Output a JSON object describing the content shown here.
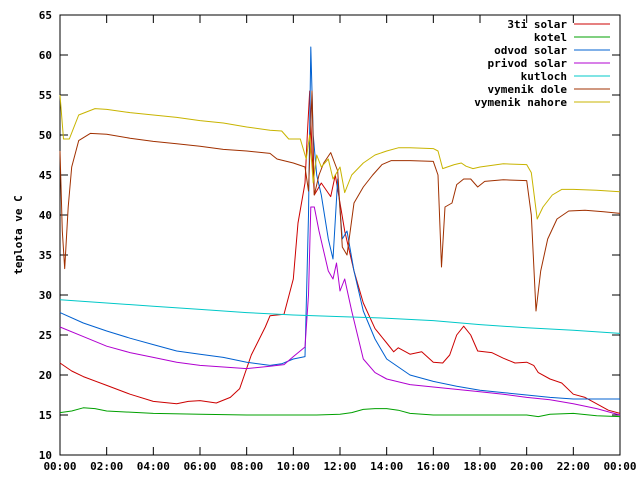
{
  "chart_data": {
    "type": "line",
    "title": "",
    "xlabel": "",
    "ylabel": "teplota ve C",
    "xlim": [
      0,
      24
    ],
    "ylim": [
      10,
      65
    ],
    "grid": false,
    "legend_position": "top-right",
    "x_ticks": [
      {
        "value": 0,
        "label": "00:00"
      },
      {
        "value": 2,
        "label": "02:00"
      },
      {
        "value": 4,
        "label": "04:00"
      },
      {
        "value": 6,
        "label": "06:00"
      },
      {
        "value": 8,
        "label": "08:00"
      },
      {
        "value": 10,
        "label": "10:00"
      },
      {
        "value": 12,
        "label": "12:00"
      },
      {
        "value": 14,
        "label": "14:00"
      },
      {
        "value": 16,
        "label": "16:00"
      },
      {
        "value": 18,
        "label": "18:00"
      },
      {
        "value": 20,
        "label": "20:00"
      },
      {
        "value": 22,
        "label": "22:00"
      },
      {
        "value": 24,
        "label": "00:00"
      }
    ],
    "y_ticks": [
      {
        "value": 10,
        "label": "10"
      },
      {
        "value": 15,
        "label": "15"
      },
      {
        "value": 20,
        "label": "20"
      },
      {
        "value": 25,
        "label": "25"
      },
      {
        "value": 30,
        "label": "30"
      },
      {
        "value": 35,
        "label": "35"
      },
      {
        "value": 40,
        "label": "40"
      },
      {
        "value": 45,
        "label": "45"
      },
      {
        "value": 50,
        "label": "50"
      },
      {
        "value": 55,
        "label": "55"
      },
      {
        "value": 60,
        "label": "60"
      },
      {
        "value": 65,
        "label": "65"
      }
    ],
    "series": [
      {
        "name": "3ti solar",
        "color": "#cc0000",
        "points": [
          [
            0,
            21.5
          ],
          [
            0.5,
            20.5
          ],
          [
            1,
            19.8
          ],
          [
            2,
            18.7
          ],
          [
            3,
            17.6
          ],
          [
            4,
            16.7
          ],
          [
            5,
            16.4
          ],
          [
            5.5,
            16.7
          ],
          [
            6,
            16.8
          ],
          [
            6.7,
            16.5
          ],
          [
            7.3,
            17.2
          ],
          [
            7.7,
            18.3
          ],
          [
            8.2,
            22.5
          ],
          [
            8.8,
            26
          ],
          [
            9,
            27.4
          ],
          [
            9.6,
            27.6
          ],
          [
            10,
            32
          ],
          [
            10.2,
            39
          ],
          [
            10.5,
            44
          ],
          [
            10.6,
            50
          ],
          [
            10.7,
            55.5
          ],
          [
            10.8,
            48
          ],
          [
            10.9,
            42.5
          ],
          [
            11.2,
            44
          ],
          [
            11.6,
            42.3
          ],
          [
            11.8,
            45
          ],
          [
            12.2,
            38
          ],
          [
            12.6,
            33
          ],
          [
            13,
            29
          ],
          [
            13.5,
            25.8
          ],
          [
            14,
            24
          ],
          [
            14.3,
            22.9
          ],
          [
            14.5,
            23.4
          ],
          [
            15,
            22.6
          ],
          [
            15.5,
            22.9
          ],
          [
            16,
            21.6
          ],
          [
            16.4,
            21.5
          ],
          [
            16.7,
            22.5
          ],
          [
            17,
            25
          ],
          [
            17.3,
            26.1
          ],
          [
            17.6,
            25
          ],
          [
            17.9,
            23
          ],
          [
            18.5,
            22.8
          ],
          [
            19,
            22.1
          ],
          [
            19.5,
            21.5
          ],
          [
            20,
            21.6
          ],
          [
            20.3,
            21.2
          ],
          [
            20.5,
            20.3
          ],
          [
            21,
            19.5
          ],
          [
            21.5,
            19
          ],
          [
            22,
            17.6
          ],
          [
            22.5,
            17.2
          ],
          [
            23,
            16.4
          ],
          [
            23.5,
            15.6
          ],
          [
            24,
            15.2
          ]
        ]
      },
      {
        "name": "kotel",
        "color": "#00a000",
        "points": [
          [
            0,
            15.3
          ],
          [
            0.5,
            15.5
          ],
          [
            1,
            15.9
          ],
          [
            1.5,
            15.8
          ],
          [
            2,
            15.5
          ],
          [
            4,
            15.2
          ],
          [
            6,
            15.1
          ],
          [
            8,
            15
          ],
          [
            10,
            15
          ],
          [
            11,
            15
          ],
          [
            12,
            15.1
          ],
          [
            12.5,
            15.3
          ],
          [
            13,
            15.7
          ],
          [
            13.5,
            15.8
          ],
          [
            14,
            15.8
          ],
          [
            14.5,
            15.6
          ],
          [
            15,
            15.2
          ],
          [
            16,
            15
          ],
          [
            18,
            15
          ],
          [
            20,
            15
          ],
          [
            20.5,
            14.8
          ],
          [
            21,
            15.1
          ],
          [
            22,
            15.2
          ],
          [
            23,
            14.9
          ],
          [
            24,
            14.8
          ]
        ]
      },
      {
        "name": "odvod solar",
        "color": "#0060d0",
        "points": [
          [
            0,
            27.8
          ],
          [
            1,
            26.5
          ],
          [
            2,
            25.5
          ],
          [
            3,
            24.6
          ],
          [
            4,
            23.8
          ],
          [
            5,
            23
          ],
          [
            6,
            22.6
          ],
          [
            7,
            22.2
          ],
          [
            8,
            21.6
          ],
          [
            9,
            21.2
          ],
          [
            9.5,
            21.4
          ],
          [
            10,
            22
          ],
          [
            10.5,
            22.3
          ],
          [
            10.65,
            40
          ],
          [
            10.75,
            61
          ],
          [
            10.85,
            50
          ],
          [
            11,
            45
          ],
          [
            11.2,
            42.5
          ],
          [
            11.5,
            37
          ],
          [
            11.7,
            34.5
          ],
          [
            11.9,
            44.5
          ],
          [
            12.1,
            37
          ],
          [
            12.3,
            38
          ],
          [
            12.6,
            33
          ],
          [
            13,
            28
          ],
          [
            13.5,
            24.5
          ],
          [
            14,
            22
          ],
          [
            15,
            20
          ],
          [
            16,
            19.2
          ],
          [
            17,
            18.6
          ],
          [
            18,
            18.1
          ],
          [
            19,
            17.8
          ],
          [
            20,
            17.5
          ],
          [
            21,
            17.2
          ],
          [
            22,
            17
          ],
          [
            23,
            17
          ],
          [
            24,
            17
          ]
        ]
      },
      {
        "name": "privod solar",
        "color": "#b000d0",
        "points": [
          [
            0,
            26
          ],
          [
            1,
            24.8
          ],
          [
            2,
            23.6
          ],
          [
            3,
            22.8
          ],
          [
            4,
            22.2
          ],
          [
            5,
            21.6
          ],
          [
            6,
            21.2
          ],
          [
            7,
            21
          ],
          [
            8,
            20.8
          ],
          [
            9,
            21.1
          ],
          [
            9.6,
            21.3
          ],
          [
            10,
            22.3
          ],
          [
            10.5,
            23.5
          ],
          [
            10.65,
            30
          ],
          [
            10.75,
            41
          ],
          [
            10.9,
            41
          ],
          [
            11.1,
            38
          ],
          [
            11.5,
            33
          ],
          [
            11.7,
            32
          ],
          [
            11.85,
            34
          ],
          [
            12,
            30.5
          ],
          [
            12.2,
            32
          ],
          [
            12.5,
            28
          ],
          [
            13,
            22
          ],
          [
            13.5,
            20.3
          ],
          [
            14,
            19.5
          ],
          [
            15,
            18.8
          ],
          [
            16,
            18.5
          ],
          [
            17,
            18.2
          ],
          [
            18,
            17.9
          ],
          [
            19,
            17.6
          ],
          [
            20,
            17.2
          ],
          [
            21,
            16.9
          ],
          [
            22,
            16.4
          ],
          [
            23,
            15.8
          ],
          [
            24,
            15
          ]
        ]
      },
      {
        "name": "kutloch",
        "color": "#00c8c8",
        "points": [
          [
            0,
            29.4
          ],
          [
            2,
            29
          ],
          [
            4,
            28.6
          ],
          [
            6,
            28.2
          ],
          [
            8,
            27.8
          ],
          [
            10,
            27.5
          ],
          [
            12,
            27.3
          ],
          [
            14,
            27.1
          ],
          [
            16,
            26.8
          ],
          [
            18,
            26.3
          ],
          [
            20,
            25.9
          ],
          [
            22,
            25.6
          ],
          [
            24,
            25.2
          ]
        ]
      },
      {
        "name": "vymenik dole",
        "color": "#a03000",
        "points": [
          [
            0,
            48
          ],
          [
            0.1,
            38
          ],
          [
            0.2,
            33.3
          ],
          [
            0.35,
            41
          ],
          [
            0.5,
            46
          ],
          [
            0.8,
            49.3
          ],
          [
            1.3,
            50.2
          ],
          [
            2,
            50.1
          ],
          [
            3,
            49.6
          ],
          [
            4,
            49.2
          ],
          [
            5,
            48.9
          ],
          [
            6,
            48.6
          ],
          [
            7,
            48.2
          ],
          [
            8,
            48
          ],
          [
            9,
            47.7
          ],
          [
            9.3,
            47
          ],
          [
            10,
            46.5
          ],
          [
            10.5,
            46
          ],
          [
            10.65,
            43
          ],
          [
            10.8,
            55.5
          ],
          [
            10.9,
            42.5
          ],
          [
            11.1,
            45
          ],
          [
            11.3,
            46.5
          ],
          [
            11.6,
            47.8
          ],
          [
            11.9,
            45.5
          ],
          [
            12.1,
            36
          ],
          [
            12.3,
            35
          ],
          [
            12.6,
            41.5
          ],
          [
            13,
            43.5
          ],
          [
            13.4,
            45
          ],
          [
            13.8,
            46.3
          ],
          [
            14.2,
            46.8
          ],
          [
            15,
            46.8
          ],
          [
            16,
            46.7
          ],
          [
            16.2,
            45
          ],
          [
            16.35,
            33.5
          ],
          [
            16.5,
            41
          ],
          [
            16.8,
            41.5
          ],
          [
            17,
            43.8
          ],
          [
            17.3,
            44.5
          ],
          [
            17.6,
            44.5
          ],
          [
            17.9,
            43.5
          ],
          [
            18.2,
            44.2
          ],
          [
            19,
            44.4
          ],
          [
            20,
            44.3
          ],
          [
            20.2,
            40
          ],
          [
            20.4,
            28
          ],
          [
            20.6,
            33
          ],
          [
            20.9,
            37
          ],
          [
            21.3,
            39.5
          ],
          [
            21.8,
            40.5
          ],
          [
            22.5,
            40.6
          ],
          [
            23.3,
            40.4
          ],
          [
            24,
            40.2
          ]
        ]
      },
      {
        "name": "vymenik nahore",
        "color": "#c8b400",
        "points": [
          [
            0,
            55
          ],
          [
            0.15,
            49.5
          ],
          [
            0.4,
            49.5
          ],
          [
            0.8,
            52.5
          ],
          [
            1.5,
            53.3
          ],
          [
            2,
            53.2
          ],
          [
            3,
            52.8
          ],
          [
            4,
            52.5
          ],
          [
            5,
            52.2
          ],
          [
            6,
            51.8
          ],
          [
            7,
            51.5
          ],
          [
            8,
            51
          ],
          [
            9,
            50.6
          ],
          [
            9.5,
            50.5
          ],
          [
            9.8,
            49.5
          ],
          [
            10.3,
            49.5
          ],
          [
            10.55,
            47
          ],
          [
            10.7,
            50
          ],
          [
            10.85,
            44
          ],
          [
            11,
            47.5
          ],
          [
            11.2,
            46
          ],
          [
            11.5,
            47
          ],
          [
            11.7,
            44.5
          ],
          [
            12,
            46
          ],
          [
            12.2,
            42.8
          ],
          [
            12.5,
            45
          ],
          [
            13,
            46.5
          ],
          [
            13.5,
            47.5
          ],
          [
            14,
            48
          ],
          [
            14.5,
            48.4
          ],
          [
            15,
            48.4
          ],
          [
            16,
            48.3
          ],
          [
            16.2,
            48
          ],
          [
            16.4,
            45.8
          ],
          [
            16.6,
            46
          ],
          [
            16.9,
            46.3
          ],
          [
            17.2,
            46.5
          ],
          [
            17.4,
            46.1
          ],
          [
            17.7,
            45.8
          ],
          [
            18,
            46
          ],
          [
            18.5,
            46.2
          ],
          [
            19,
            46.4
          ],
          [
            20,
            46.3
          ],
          [
            20.2,
            45.3
          ],
          [
            20.45,
            39.5
          ],
          [
            20.7,
            41
          ],
          [
            21.1,
            42.5
          ],
          [
            21.5,
            43.2
          ],
          [
            22,
            43.2
          ],
          [
            23,
            43.1
          ],
          [
            24,
            42.9
          ]
        ]
      }
    ]
  }
}
